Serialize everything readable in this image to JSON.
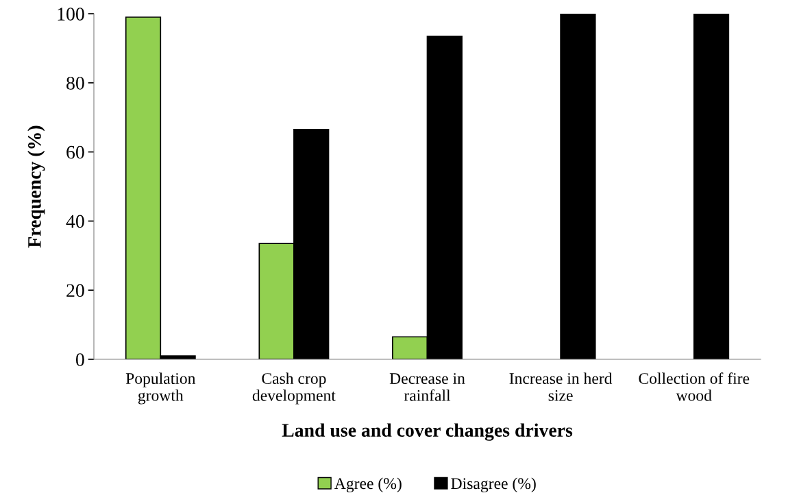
{
  "chart_data": {
    "type": "bar",
    "xlabel": "Land use and cover changes drivers",
    "ylabel": "Frequency (%)",
    "categories": [
      "Population\ngrowth",
      "Cash crop\ndevelopment",
      "Decrease in\nrainfall",
      "Increase in herd\nsize",
      "Collection of fire\nwood"
    ],
    "series": [
      {
        "name": "Agree (%)",
        "color": "#92d050",
        "values": [
          99,
          33.5,
          6.5,
          0,
          0
        ]
      },
      {
        "name": "Disagree (%)",
        "color": "#000000",
        "values": [
          1,
          66.5,
          93.5,
          100,
          100
        ]
      }
    ],
    "ylim": [
      0,
      100
    ],
    "yticks": [
      0,
      20,
      40,
      60,
      80,
      100
    ],
    "grid": false,
    "legend": "bottom"
  }
}
